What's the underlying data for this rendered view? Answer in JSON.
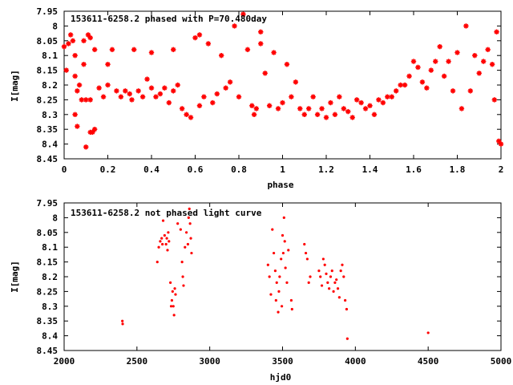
{
  "chart_data": [
    {
      "type": "scatter",
      "title": "153611-6258.2 phased with P=70.480day",
      "xlabel": "phase",
      "ylabel": "I[mag]",
      "xlim": [
        0,
        2
      ],
      "ylim": [
        8.45,
        7.95
      ],
      "y_inverted": true,
      "grid": false,
      "marker_color": "#ff0000",
      "marker": "asterisk",
      "xticks": [
        "0",
        "0.2",
        "0.4",
        "0.6",
        "0.8",
        "1",
        "1.2",
        "1.4",
        "1.6",
        "1.8",
        "2"
      ],
      "yticks": [
        "7.95",
        "8",
        "8.05",
        "8.1",
        "8.15",
        "8.2",
        "8.25",
        "8.3",
        "8.35",
        "8.4",
        "8.45"
      ],
      "points": [
        [
          0.0,
          8.07
        ],
        [
          0.01,
          8.15
        ],
        [
          0.02,
          8.06
        ],
        [
          0.03,
          8.03
        ],
        [
          0.04,
          8.05
        ],
        [
          0.05,
          8.1
        ],
        [
          0.05,
          8.17
        ],
        [
          0.06,
          8.22
        ],
        [
          0.07,
          8.2
        ],
        [
          0.08,
          8.25
        ],
        [
          0.09,
          8.05
        ],
        [
          0.09,
          8.13
        ],
        [
          0.1,
          8.25
        ],
        [
          0.1,
          8.41
        ],
        [
          0.11,
          8.03
        ],
        [
          0.12,
          8.04
        ],
        [
          0.12,
          8.36
        ],
        [
          0.13,
          8.36
        ],
        [
          0.14,
          8.35
        ],
        [
          0.05,
          8.3
        ],
        [
          0.06,
          8.34
        ],
        [
          0.12,
          8.25
        ],
        [
          0.14,
          8.08
        ],
        [
          0.16,
          8.21
        ],
        [
          0.18,
          8.24
        ],
        [
          0.2,
          8.2
        ],
        [
          0.2,
          8.13
        ],
        [
          0.22,
          8.08
        ],
        [
          0.24,
          8.22
        ],
        [
          0.26,
          8.24
        ],
        [
          0.28,
          8.22
        ],
        [
          0.3,
          8.23
        ],
        [
          0.31,
          8.25
        ],
        [
          0.32,
          8.08
        ],
        [
          0.34,
          8.22
        ],
        [
          0.36,
          8.24
        ],
        [
          0.38,
          8.18
        ],
        [
          0.4,
          8.21
        ],
        [
          0.4,
          8.09
        ],
        [
          0.42,
          8.24
        ],
        [
          0.44,
          8.23
        ],
        [
          0.46,
          8.21
        ],
        [
          0.48,
          8.26
        ],
        [
          0.5,
          8.08
        ],
        [
          0.5,
          8.22
        ],
        [
          0.52,
          8.2
        ],
        [
          0.54,
          8.28
        ],
        [
          0.56,
          8.3
        ],
        [
          0.58,
          8.31
        ],
        [
          0.6,
          8.04
        ],
        [
          0.62,
          8.03
        ],
        [
          0.62,
          8.27
        ],
        [
          0.64,
          8.24
        ],
        [
          0.66,
          8.06
        ],
        [
          0.68,
          8.26
        ],
        [
          0.7,
          8.23
        ],
        [
          0.72,
          8.1
        ],
        [
          0.74,
          8.21
        ],
        [
          0.76,
          8.19
        ],
        [
          0.78,
          8.0
        ],
        [
          0.8,
          8.24
        ],
        [
          0.82,
          7.96
        ],
        [
          0.84,
          8.08
        ],
        [
          0.86,
          8.27
        ],
        [
          0.87,
          8.3
        ],
        [
          0.88,
          8.28
        ],
        [
          0.9,
          8.06
        ],
        [
          0.9,
          8.02
        ],
        [
          0.92,
          8.16
        ],
        [
          0.94,
          8.27
        ],
        [
          0.96,
          8.09
        ],
        [
          0.98,
          8.28
        ],
        [
          1.0,
          8.26
        ],
        [
          1.02,
          8.13
        ],
        [
          1.04,
          8.24
        ],
        [
          1.06,
          8.19
        ],
        [
          1.08,
          8.28
        ],
        [
          1.1,
          8.3
        ],
        [
          1.12,
          8.28
        ],
        [
          1.14,
          8.24
        ],
        [
          1.16,
          8.3
        ],
        [
          1.18,
          8.28
        ],
        [
          1.2,
          8.31
        ],
        [
          1.22,
          8.26
        ],
        [
          1.24,
          8.3
        ],
        [
          1.26,
          8.24
        ],
        [
          1.28,
          8.28
        ],
        [
          1.3,
          8.29
        ],
        [
          1.32,
          8.31
        ],
        [
          1.34,
          8.25
        ],
        [
          1.36,
          8.26
        ],
        [
          1.38,
          8.28
        ],
        [
          1.4,
          8.27
        ],
        [
          1.42,
          8.3
        ],
        [
          1.44,
          8.25
        ],
        [
          1.46,
          8.26
        ],
        [
          1.48,
          8.24
        ],
        [
          1.5,
          8.24
        ],
        [
          1.52,
          8.22
        ],
        [
          1.54,
          8.2
        ],
        [
          1.56,
          8.2
        ],
        [
          1.58,
          8.17
        ],
        [
          1.6,
          8.12
        ],
        [
          1.62,
          8.14
        ],
        [
          1.64,
          8.19
        ],
        [
          1.66,
          8.21
        ],
        [
          1.68,
          8.15
        ],
        [
          1.7,
          8.12
        ],
        [
          1.72,
          8.07
        ],
        [
          1.74,
          8.17
        ],
        [
          1.76,
          8.12
        ],
        [
          1.78,
          8.22
        ],
        [
          1.8,
          8.09
        ],
        [
          1.82,
          8.28
        ],
        [
          1.84,
          8.0
        ],
        [
          1.86,
          8.22
        ],
        [
          1.88,
          8.1
        ],
        [
          1.9,
          8.16
        ],
        [
          1.92,
          8.12
        ],
        [
          1.94,
          8.08
        ],
        [
          1.96,
          8.13
        ],
        [
          1.97,
          8.25
        ],
        [
          1.98,
          8.02
        ],
        [
          1.99,
          8.39
        ],
        [
          2.0,
          8.4
        ]
      ]
    },
    {
      "type": "scatter",
      "title": "153611-6258.2 not phased light curve",
      "xlabel": "hjd0",
      "ylabel": "I[mag]",
      "xlim": [
        2000,
        5000
      ],
      "ylim": [
        8.45,
        7.95
      ],
      "y_inverted": true,
      "grid": false,
      "marker_color": "#ff0000",
      "marker": "point",
      "xticks": [
        "2000",
        "2500",
        "3000",
        "3500",
        "4000",
        "4500",
        "5000"
      ],
      "yticks": [
        "7.95",
        "8",
        "8.05",
        "8.1",
        "8.15",
        "8.2",
        "8.25",
        "8.3",
        "8.35",
        "8.4",
        "8.45"
      ],
      "points": [
        [
          2400,
          8.35
        ],
        [
          2402,
          8.36
        ],
        [
          2640,
          8.15
        ],
        [
          2650,
          8.1
        ],
        [
          2660,
          8.08
        ],
        [
          2670,
          8.07
        ],
        [
          2675,
          8.09
        ],
        [
          2680,
          8.01
        ],
        [
          2690,
          8.06
        ],
        [
          2700,
          8.09
        ],
        [
          2705,
          8.07
        ],
        [
          2710,
          8.11
        ],
        [
          2715,
          8.05
        ],
        [
          2720,
          8.08
        ],
        [
          2730,
          8.22
        ],
        [
          2735,
          8.3
        ],
        [
          2740,
          8.28
        ],
        [
          2745,
          8.25
        ],
        [
          2750,
          8.3
        ],
        [
          2755,
          8.33
        ],
        [
          2760,
          8.24
        ],
        [
          2765,
          8.26
        ],
        [
          2780,
          8.02
        ],
        [
          2800,
          8.04
        ],
        [
          2810,
          8.15
        ],
        [
          2815,
          8.2
        ],
        [
          2820,
          8.23
        ],
        [
          2830,
          8.1
        ],
        [
          2840,
          8.05
        ],
        [
          2850,
          8.09
        ],
        [
          2855,
          8.0
        ],
        [
          2860,
          7.97
        ],
        [
          2865,
          8.02
        ],
        [
          2870,
          8.07
        ],
        [
          2875,
          8.12
        ],
        [
          3400,
          8.16
        ],
        [
          3410,
          8.2
        ],
        [
          3420,
          8.26
        ],
        [
          3430,
          8.04
        ],
        [
          3440,
          8.12
        ],
        [
          3450,
          8.18
        ],
        [
          3455,
          8.28
        ],
        [
          3460,
          8.22
        ],
        [
          3470,
          8.32
        ],
        [
          3475,
          8.25
        ],
        [
          3480,
          8.2
        ],
        [
          3490,
          8.14
        ],
        [
          3495,
          8.3
        ],
        [
          3500,
          8.06
        ],
        [
          3505,
          8.12
        ],
        [
          3510,
          8.0
        ],
        [
          3515,
          8.08
        ],
        [
          3520,
          8.17
        ],
        [
          3530,
          8.22
        ],
        [
          3540,
          8.11
        ],
        [
          3560,
          8.28
        ],
        [
          3565,
          8.31
        ],
        [
          3650,
          8.09
        ],
        [
          3660,
          8.12
        ],
        [
          3670,
          8.14
        ],
        [
          3680,
          8.22
        ],
        [
          3690,
          8.2
        ],
        [
          3750,
          8.18
        ],
        [
          3760,
          8.2
        ],
        [
          3770,
          8.23
        ],
        [
          3780,
          8.14
        ],
        [
          3790,
          8.16
        ],
        [
          3800,
          8.19
        ],
        [
          3810,
          8.22
        ],
        [
          3820,
          8.24
        ],
        [
          3830,
          8.2
        ],
        [
          3840,
          8.18
        ],
        [
          3850,
          8.25
        ],
        [
          3860,
          8.22
        ],
        [
          3870,
          8.21
        ],
        [
          3880,
          8.24
        ],
        [
          3890,
          8.27
        ],
        [
          3900,
          8.18
        ],
        [
          3910,
          8.16
        ],
        [
          3920,
          8.2
        ],
        [
          3930,
          8.28
        ],
        [
          3940,
          8.31
        ],
        [
          3945,
          8.41
        ],
        [
          4500,
          8.39
        ]
      ]
    }
  ]
}
